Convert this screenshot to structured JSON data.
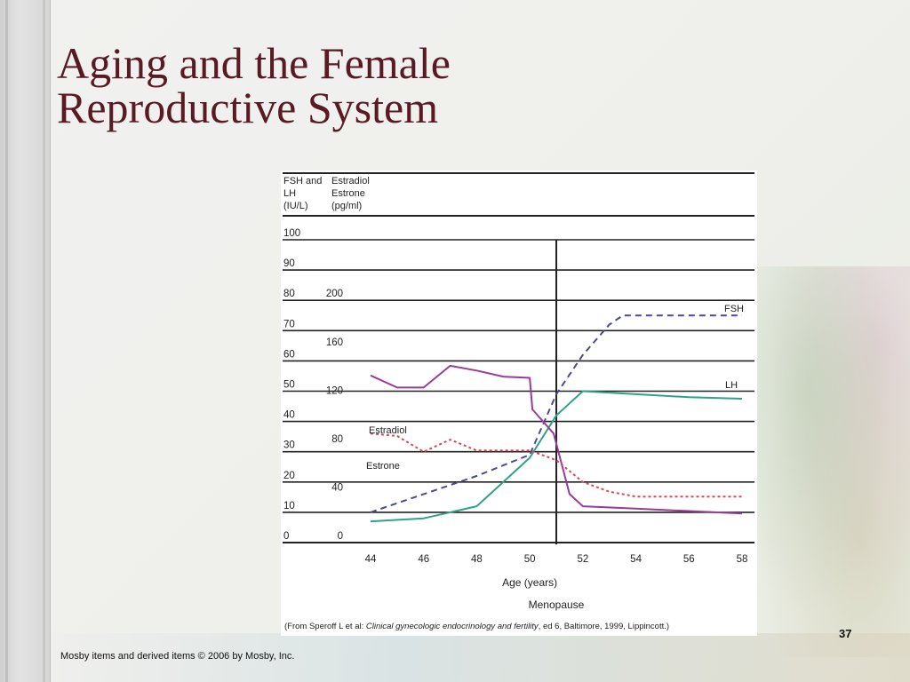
{
  "slide": {
    "title_line1": "Aging and the Female",
    "title_line2": "Reproductive System",
    "slide_number": "37",
    "footer": "Mosby items and derived items © 2006 by Mosby, Inc."
  },
  "chart_data": {
    "type": "line",
    "header_left": [
      "FSH and",
      "LH",
      "(IU/L)"
    ],
    "header_right": [
      "Estradiol",
      "Estrone",
      "(pg/ml)"
    ],
    "left_ticks": [
      100,
      90,
      80,
      70,
      60,
      50,
      40,
      30,
      20,
      10,
      0
    ],
    "right_ticks": [
      200,
      160,
      120,
      80,
      40,
      0
    ],
    "ylim_left": [
      0,
      100
    ],
    "ylim_right": [
      0,
      250
    ],
    "x_ticks": [
      44,
      46,
      48,
      50,
      52,
      54,
      56,
      58
    ],
    "xlim": [
      44,
      58
    ],
    "xlabel": "Age (years)",
    "menopause_x": 51,
    "menopause_label": "Menopause",
    "grid": true,
    "series": [
      {
        "name": "FSH",
        "axis": "left",
        "style": "dashed",
        "color": "#4a4a8e",
        "x": [
          44,
          46,
          48,
          50,
          51,
          52,
          53,
          53.5,
          54,
          55,
          56,
          57,
          58
        ],
        "y": [
          10,
          16,
          22,
          29,
          49,
          62,
          72,
          75,
          75,
          75,
          75,
          75,
          75
        ]
      },
      {
        "name": "LH",
        "axis": "left",
        "style": "solid",
        "color": "#2ea386",
        "x": [
          44,
          46,
          48,
          50,
          51,
          52,
          54,
          56,
          58
        ],
        "y": [
          7,
          8,
          12,
          28,
          42,
          50,
          49,
          48,
          47.5
        ]
      },
      {
        "name": "Estradiol",
        "axis": "right",
        "style": "solid",
        "color": "#9a3a9a",
        "x": [
          44,
          45,
          46,
          47,
          48,
          49,
          50,
          50.1,
          50.5,
          50.9,
          51.5,
          52,
          54,
          56,
          58
        ],
        "y": [
          138,
          128,
          128,
          146,
          142,
          137,
          136,
          110,
          100,
          90,
          40,
          30,
          28,
          26,
          24
        ]
      },
      {
        "name": "Estrone",
        "axis": "right",
        "style": "dotted",
        "color": "#d24b5a",
        "x": [
          44,
          45,
          46,
          47,
          48,
          50,
          51,
          52,
          53,
          54,
          56,
          58
        ],
        "y": [
          90,
          88,
          75,
          85,
          76,
          76,
          68,
          50,
          42,
          38,
          38,
          38
        ]
      }
    ],
    "source": "(From Speroff L et al: Clinical gynecologic endocrinology and fertility, ed 6, Baltimore, 1999, Lippincott.)",
    "source_prefix": "(From Speroff L et al: ",
    "source_italic": "Clinical gynecologic endocrinology and fertility",
    "source_suffix": ", ed 6, Baltimore, 1999, Lippincott.)"
  }
}
